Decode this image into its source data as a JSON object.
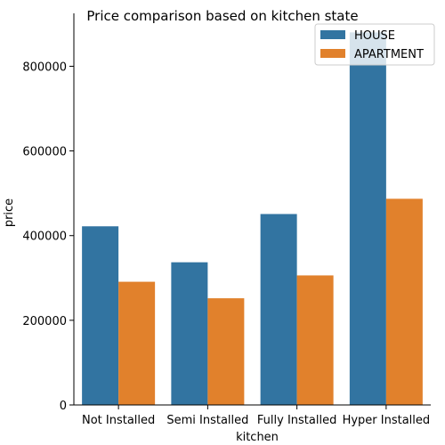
{
  "chart_data": {
    "type": "bar",
    "title": "Price comparison based on kitchen state",
    "xlabel": "kitchen",
    "ylabel": "price",
    "categories": [
      "Not Installed",
      "Semi Installed",
      "Fully Installed",
      "Hyper Installed"
    ],
    "series": [
      {
        "name": "HOUSE",
        "color": "#3274a1",
        "values": [
          422000,
          337000,
          451000,
          880000
        ]
      },
      {
        "name": "APARTMENT",
        "color": "#e1812c",
        "values": [
          291000,
          252000,
          306000,
          487000
        ]
      }
    ],
    "ylim": [
      0,
      900000
    ],
    "yticks": [
      0,
      200000,
      400000,
      600000,
      800000
    ],
    "ytick_labels": [
      "0",
      "200000",
      "400000",
      "600000",
      "800000"
    ],
    "grid": false,
    "legend_position": "top-right"
  }
}
